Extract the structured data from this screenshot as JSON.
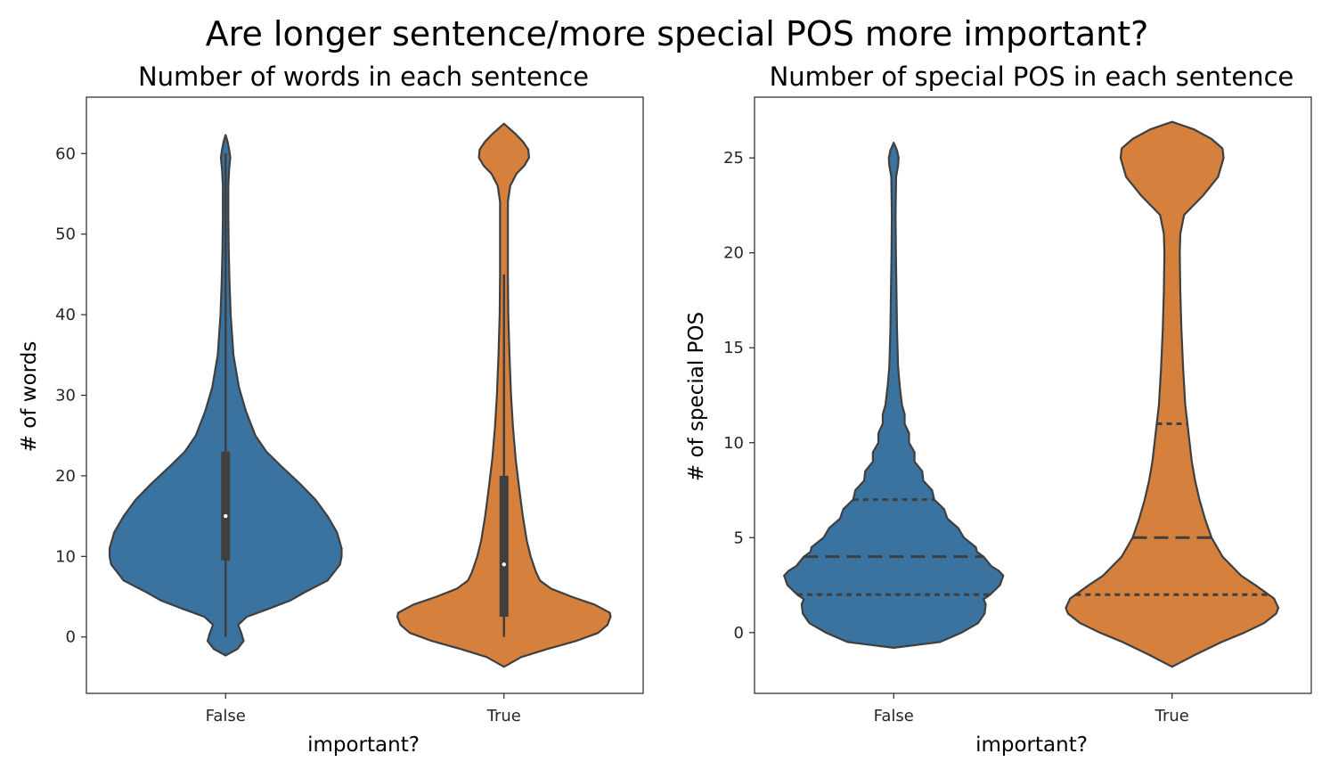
{
  "figure": {
    "title": "Are longer sentence/more special POS more important?"
  },
  "colors": {
    "false": "#3a72a0",
    "true": "#d5813d",
    "edge": "#3f3f3f"
  },
  "chart_data": [
    {
      "type": "violin",
      "title": "Number of words in each sentence",
      "xlabel": "important?",
      "ylabel": "# of words",
      "ylim": [
        -7,
        67
      ],
      "yticks": [
        0,
        10,
        20,
        30,
        40,
        50,
        60
      ],
      "inner": "box",
      "categories": [
        "False",
        "True"
      ],
      "violins": [
        {
          "category": "False",
          "color_key": "false",
          "min": 0,
          "q1": 9.5,
          "median": 15,
          "q3": 23,
          "max": 60,
          "density": [
            [
              -2.3,
              0
            ],
            [
              -1.5,
              0.15
            ],
            [
              -0.5,
              0.23
            ],
            [
              0.5,
              0.2
            ],
            [
              1.5,
              0.16
            ],
            [
              2.5,
              0.27
            ],
            [
              3.5,
              0.55
            ],
            [
              4.5,
              0.82
            ],
            [
              5.5,
              1.0
            ],
            [
              7,
              1.3
            ],
            [
              9,
              1.46
            ],
            [
              10,
              1.48
            ],
            [
              11,
              1.48
            ],
            [
              13,
              1.42
            ],
            [
              15,
              1.3
            ],
            [
              17,
              1.15
            ],
            [
              19,
              0.95
            ],
            [
              21,
              0.73
            ],
            [
              23,
              0.52
            ],
            [
              25,
              0.38
            ],
            [
              28,
              0.26
            ],
            [
              31,
              0.17
            ],
            [
              35,
              0.1
            ],
            [
              40,
              0.065
            ],
            [
              44,
              0.05
            ],
            [
              48,
              0.04
            ],
            [
              52,
              0.035
            ],
            [
              56,
              0.035
            ],
            [
              58,
              0.045
            ],
            [
              59.5,
              0.06
            ],
            [
              60.5,
              0.045
            ],
            [
              61.5,
              0.025
            ],
            [
              62.3,
              0
            ]
          ]
        },
        {
          "category": "True",
          "color_key": "true",
          "min": 0,
          "q1": 2.5,
          "median": 9,
          "q3": 20,
          "max": 45,
          "density": [
            [
              -3.7,
              0
            ],
            [
              -2.5,
              0.22
            ],
            [
              -1.5,
              0.55
            ],
            [
              -0.5,
              0.92
            ],
            [
              0.5,
              1.2
            ],
            [
              1.5,
              1.32
            ],
            [
              2.5,
              1.36
            ],
            [
              3,
              1.35
            ],
            [
              4,
              1.16
            ],
            [
              5,
              0.86
            ],
            [
              6,
              0.6
            ],
            [
              7,
              0.46
            ],
            [
              8,
              0.41
            ],
            [
              10,
              0.34
            ],
            [
              12,
              0.29
            ],
            [
              15,
              0.24
            ],
            [
              18,
              0.2
            ],
            [
              22,
              0.15
            ],
            [
              26,
              0.115
            ],
            [
              30,
              0.09
            ],
            [
              35,
              0.07
            ],
            [
              40,
              0.055
            ],
            [
              45,
              0.05
            ],
            [
              50,
              0.05
            ],
            [
              54,
              0.05
            ],
            [
              56,
              0.08
            ],
            [
              57.5,
              0.16
            ],
            [
              58.5,
              0.26
            ],
            [
              59.5,
              0.32
            ],
            [
              60.5,
              0.31
            ],
            [
              61.5,
              0.24
            ],
            [
              62.5,
              0.14
            ],
            [
              63.7,
              0
            ]
          ]
        }
      ]
    },
    {
      "type": "violin",
      "title": "Number of special POS in each sentence",
      "xlabel": "important?",
      "ylabel": "# of special POS",
      "ylim": [
        -3.2,
        28.2
      ],
      "yticks": [
        0,
        5,
        10,
        15,
        20,
        25
      ],
      "inner": "quartile",
      "categories": [
        "False",
        "True"
      ],
      "violins": [
        {
          "category": "False",
          "color_key": "false",
          "quartiles": [
            2,
            4,
            7
          ],
          "density": [
            [
              -0.8,
              0
            ],
            [
              -0.5,
              0.42
            ],
            [
              0,
              0.62
            ],
            [
              0.5,
              0.77
            ],
            [
              1,
              0.83
            ],
            [
              1.5,
              0.84
            ],
            [
              1.75,
              0.82
            ],
            [
              2,
              0.88
            ],
            [
              2.5,
              0.97
            ],
            [
              3,
              1.0
            ],
            [
              3.25,
              0.96
            ],
            [
              3.5,
              0.89
            ],
            [
              4,
              0.82
            ],
            [
              4.25,
              0.76
            ],
            [
              4.5,
              0.75
            ],
            [
              5,
              0.64
            ],
            [
              5.5,
              0.59
            ],
            [
              6,
              0.49
            ],
            [
              6.5,
              0.46
            ],
            [
              7,
              0.37
            ],
            [
              7.5,
              0.35
            ],
            [
              8,
              0.27
            ],
            [
              8.5,
              0.26
            ],
            [
              9,
              0.19
            ],
            [
              9.5,
              0.19
            ],
            [
              10,
              0.14
            ],
            [
              10.5,
              0.14
            ],
            [
              11,
              0.1
            ],
            [
              11.5,
              0.1
            ],
            [
              12,
              0.075
            ],
            [
              13,
              0.055
            ],
            [
              14,
              0.04
            ],
            [
              15,
              0.035
            ],
            [
              16,
              0.03
            ],
            [
              18,
              0.025
            ],
            [
              20,
              0.02
            ],
            [
              22,
              0.017
            ],
            [
              24,
              0.022
            ],
            [
              24.6,
              0.04
            ],
            [
              25,
              0.045
            ],
            [
              25.4,
              0.03
            ],
            [
              25.8,
              0
            ]
          ]
        },
        {
          "category": "True",
          "color_key": "true",
          "quartiles": [
            2,
            5,
            11
          ],
          "density": [
            [
              -1.8,
              0
            ],
            [
              -1.2,
              0.2
            ],
            [
              -0.5,
              0.45
            ],
            [
              0,
              0.66
            ],
            [
              0.5,
              0.84
            ],
            [
              1,
              0.95
            ],
            [
              1.3,
              0.97
            ],
            [
              1.8,
              0.93
            ],
            [
              2.5,
              0.76
            ],
            [
              3,
              0.63
            ],
            [
              4,
              0.46
            ],
            [
              5,
              0.36
            ],
            [
              6,
              0.3
            ],
            [
              7,
              0.25
            ],
            [
              8,
              0.21
            ],
            [
              9,
              0.18
            ],
            [
              10,
              0.16
            ],
            [
              11,
              0.14
            ],
            [
              12,
              0.12
            ],
            [
              14,
              0.1
            ],
            [
              16,
              0.085
            ],
            [
              18,
              0.075
            ],
            [
              20,
              0.07
            ],
            [
              21,
              0.075
            ],
            [
              22,
              0.11
            ],
            [
              23,
              0.28
            ],
            [
              24,
              0.42
            ],
            [
              25,
              0.47
            ],
            [
              25.5,
              0.46
            ],
            [
              26,
              0.36
            ],
            [
              26.5,
              0.2
            ],
            [
              26.9,
              0
            ]
          ]
        }
      ]
    }
  ]
}
